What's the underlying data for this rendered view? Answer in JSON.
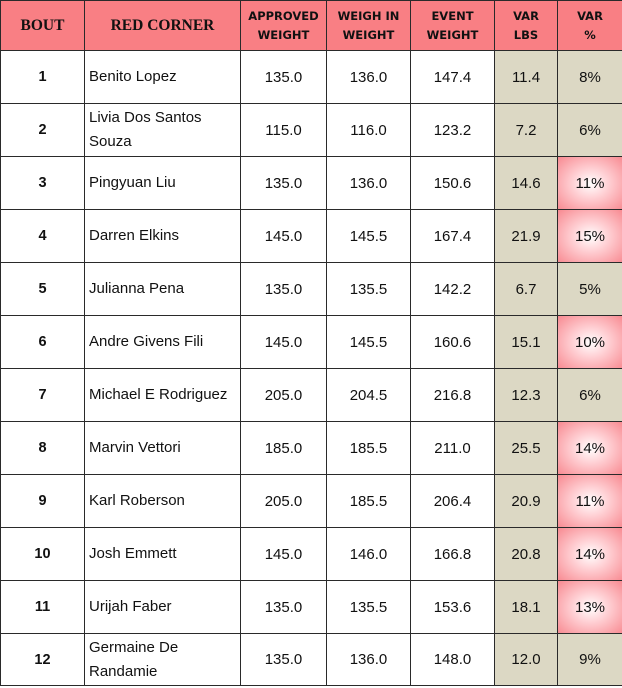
{
  "headers": {
    "bout": "BOUT",
    "red_corner": "RED CORNER",
    "approved_weight_1": "APPROVED",
    "approved_weight_2": "WEIGHT",
    "weigh_in_weight_1": "WEIGH IN",
    "weigh_in_weight_2": "WEIGHT",
    "event_weight_1": "EVENT",
    "event_weight_2": "WEIGHT",
    "var_lbs_1": "VAR",
    "var_lbs_2": "LBS",
    "var_pct_1": "VAR",
    "var_pct_2": "%"
  },
  "colors": {
    "header_background": "#f97f84",
    "variance_background": "#dcd8c4",
    "high_variance_highlight": "#f88b92"
  },
  "rows": [
    {
      "bout": "1",
      "fighter": "Benito Lopez",
      "approved": "135.0",
      "weigh_in": "136.0",
      "event": "147.4",
      "var_lbs": "11.4",
      "var_pct": "8%",
      "highlighted": false
    },
    {
      "bout": "2",
      "fighter": "Livia Dos Santos Souza",
      "approved": "115.0",
      "weigh_in": "116.0",
      "event": "123.2",
      "var_lbs": "7.2",
      "var_pct": "6%",
      "highlighted": false
    },
    {
      "bout": "3",
      "fighter": "Pingyuan Liu",
      "approved": "135.0",
      "weigh_in": "136.0",
      "event": "150.6",
      "var_lbs": "14.6",
      "var_pct": "11%",
      "highlighted": true
    },
    {
      "bout": "4",
      "fighter": "Darren Elkins",
      "approved": "145.0",
      "weigh_in": "145.5",
      "event": "167.4",
      "var_lbs": "21.9",
      "var_pct": "15%",
      "highlighted": true
    },
    {
      "bout": "5",
      "fighter": "Julianna Pena",
      "approved": "135.0",
      "weigh_in": "135.5",
      "event": "142.2",
      "var_lbs": "6.7",
      "var_pct": "5%",
      "highlighted": false
    },
    {
      "bout": "6",
      "fighter": "Andre Givens Fili",
      "approved": "145.0",
      "weigh_in": "145.5",
      "event": "160.6",
      "var_lbs": "15.1",
      "var_pct": "10%",
      "highlighted": true
    },
    {
      "bout": "7",
      "fighter": "Michael E Rodriguez",
      "approved": "205.0",
      "weigh_in": "204.5",
      "event": "216.8",
      "var_lbs": "12.3",
      "var_pct": "6%",
      "highlighted": false
    },
    {
      "bout": "8",
      "fighter": "Marvin Vettori",
      "approved": "185.0",
      "weigh_in": "185.5",
      "event": "211.0",
      "var_lbs": "25.5",
      "var_pct": "14%",
      "highlighted": true
    },
    {
      "bout": "9",
      "fighter": "Karl Roberson",
      "approved": "205.0",
      "weigh_in": "185.5",
      "event": "206.4",
      "var_lbs": "20.9",
      "var_pct": "11%",
      "highlighted": true
    },
    {
      "bout": "10",
      "fighter": "Josh Emmett",
      "approved": "145.0",
      "weigh_in": "146.0",
      "event": "166.8",
      "var_lbs": "20.8",
      "var_pct": "14%",
      "highlighted": true
    },
    {
      "bout": "11",
      "fighter": "Urijah Faber",
      "approved": "135.0",
      "weigh_in": "135.5",
      "event": "153.6",
      "var_lbs": "18.1",
      "var_pct": "13%",
      "highlighted": true
    },
    {
      "bout": "12",
      "fighter": "Germaine De Randamie",
      "approved": "135.0",
      "weigh_in": "136.0",
      "event": "148.0",
      "var_lbs": "12.0",
      "var_pct": "9%",
      "highlighted": false
    }
  ]
}
